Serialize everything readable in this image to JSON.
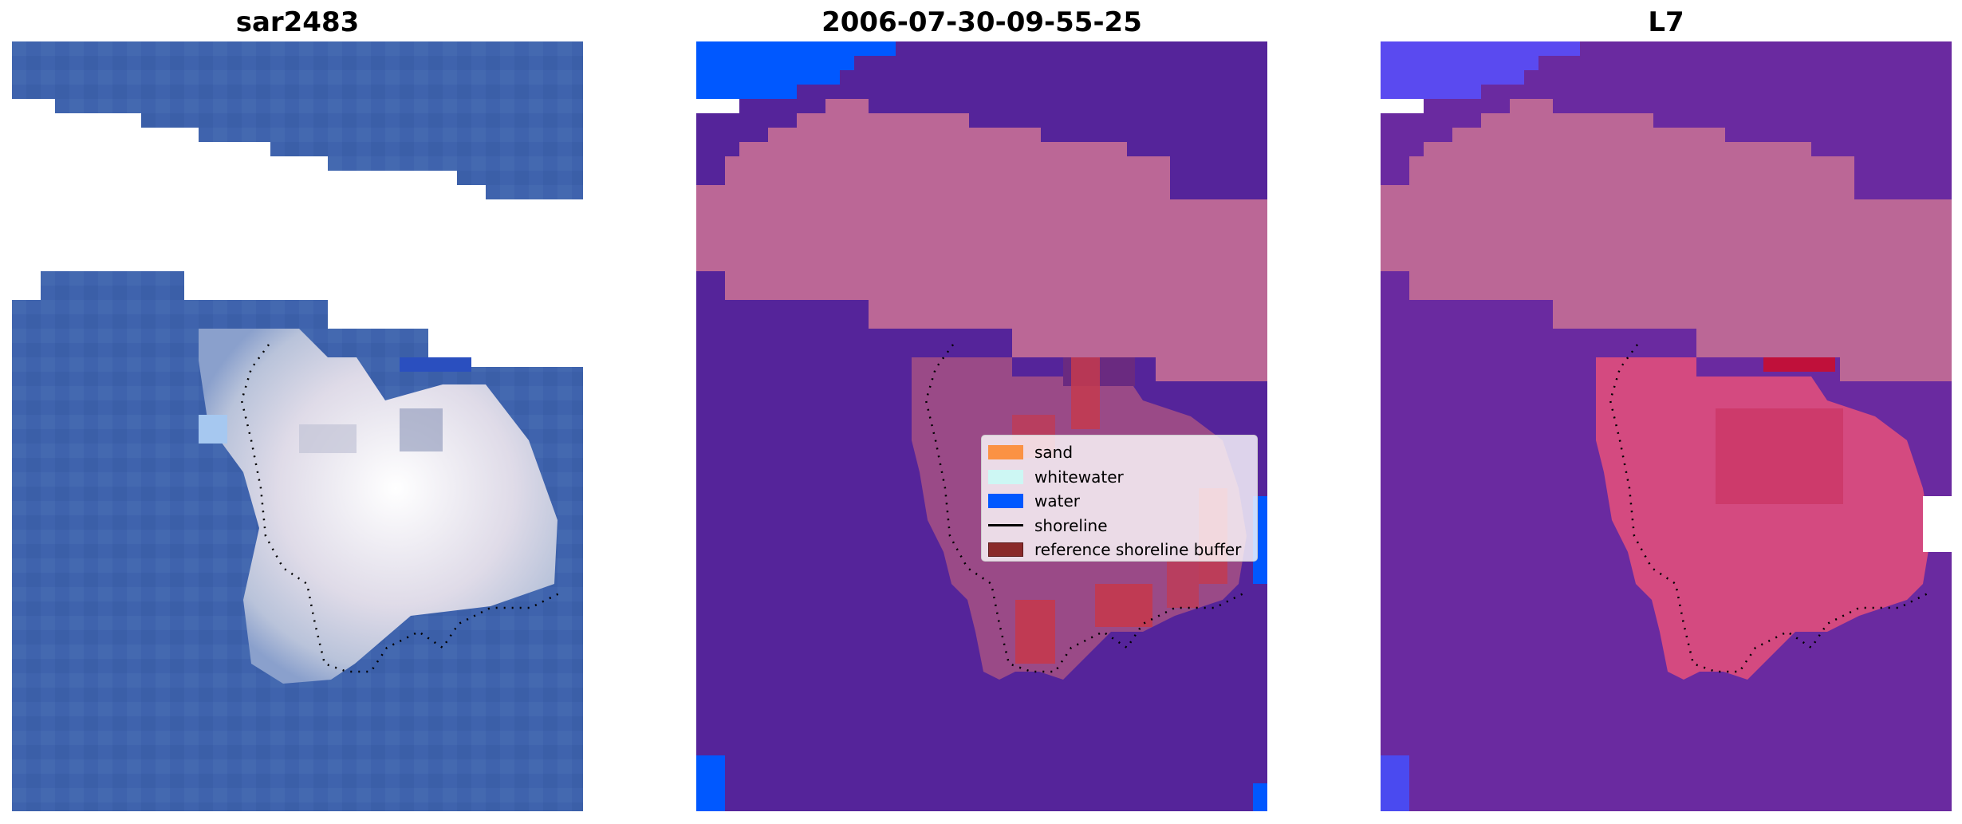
{
  "panels": [
    {
      "title": "sar2483",
      "kind": "rgb"
    },
    {
      "title": "2006-07-30-09-55-25",
      "kind": "classified"
    },
    {
      "title": "L7",
      "kind": "overlay"
    }
  ],
  "legend": {
    "items": [
      {
        "label": "sand",
        "color": "#fb9244",
        "type": "patch"
      },
      {
        "label": "whitewater",
        "color": "#cdf7f4",
        "type": "patch"
      },
      {
        "label": "water",
        "color": "#0058ff",
        "type": "patch"
      },
      {
        "label": "shoreline",
        "color": "#000000",
        "type": "line"
      },
      {
        "label": "reference shoreline buffer",
        "color": "#8a2a2a",
        "type": "patch"
      }
    ]
  },
  "colors": {
    "ocean": "#3f63ad",
    "island": "#e6e4ec",
    "cloud_mask": "#ffffff",
    "classified_water_overlay": "#55249a",
    "pink_mask": "#bb6796",
    "reference_buffer": "#c4394e",
    "water_class": "#0058ff"
  }
}
